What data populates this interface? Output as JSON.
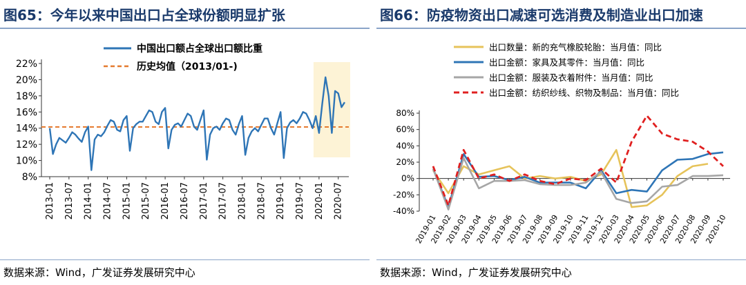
{
  "left": {
    "title": "图65：今年以来中国出口占全球份额明显扩张",
    "source": "数据来源：Wind，广发证券发展研究中心"
  },
  "right": {
    "title": "图66：防疫物资出口减速可选消费及制造业出口加速",
    "source": "数据来源：Wind，广发证券发展研究中心"
  },
  "chart_data": [
    {
      "type": "line",
      "title": "",
      "xlabel": "",
      "ylabel": "",
      "ylim": [
        0.08,
        0.22
      ],
      "yticks": [
        "8%",
        "10%",
        "12%",
        "14%",
        "16%",
        "18%",
        "20%",
        "22%"
      ],
      "xticks": [
        "2013-01",
        "2013-07",
        "2014-01",
        "2014-07",
        "2015-01",
        "2015-07",
        "2016-01",
        "2016-07",
        "2017-01",
        "2017-07",
        "2018-01",
        "2018-07",
        "2019-01",
        "2019-07",
        "2020-01",
        "2020-07"
      ],
      "legend": [
        "中国出口额占全球出口额比重",
        "历史均值（2013/01-)"
      ],
      "legend_position": "top",
      "colors": {
        "series": "#2e75b6",
        "mean": "#e57a2e",
        "highlight": "#fdf3d6"
      },
      "highlight_range": [
        "2020-01",
        "2020-09"
      ],
      "series": [
        {
          "name": "中国出口额占全球出口额比重",
          "values": [
            0.14,
            0.108,
            0.12,
            0.128,
            0.125,
            0.122,
            0.128,
            0.135,
            0.132,
            0.127,
            0.123,
            0.135,
            0.142,
            0.088,
            0.126,
            0.132,
            0.13,
            0.135,
            0.143,
            0.15,
            0.148,
            0.138,
            0.136,
            0.15,
            0.155,
            0.112,
            0.14,
            0.145,
            0.148,
            0.148,
            0.155,
            0.162,
            0.16,
            0.148,
            0.145,
            0.16,
            0.165,
            0.115,
            0.138,
            0.144,
            0.146,
            0.142,
            0.15,
            0.158,
            0.155,
            0.142,
            0.138,
            0.15,
            0.162,
            0.101,
            0.132,
            0.14,
            0.142,
            0.138,
            0.146,
            0.152,
            0.15,
            0.138,
            0.132,
            0.145,
            0.155,
            0.107,
            0.128,
            0.136,
            0.14,
            0.136,
            0.144,
            0.152,
            0.152,
            0.14,
            0.132,
            0.146,
            0.16,
            0.103,
            0.14,
            0.147,
            0.15,
            0.146,
            0.152,
            0.16,
            0.158,
            0.15,
            0.14,
            0.155,
            0.134,
            0.17,
            0.203,
            0.18,
            0.134,
            0.186,
            0.183,
            0.166,
            0.172
          ]
        },
        {
          "name": "历史均值（2013/01-)",
          "values": [
            0.1415
          ]
        }
      ]
    },
    {
      "type": "line",
      "title": "",
      "xlabel": "",
      "ylabel": "",
      "ylim": [
        -0.4,
        0.8
      ],
      "yticks": [
        "-40%",
        "-20%",
        "0%",
        "20%",
        "40%",
        "60%",
        "80%"
      ],
      "categories": [
        "2019-01",
        "2019-02",
        "2019-03",
        "2019-04",
        "2019-05",
        "2019-06",
        "2019-07",
        "2019-08",
        "2019-09",
        "2019-10",
        "2019-11",
        "2019-12",
        "2020-03",
        "2020-04",
        "2020-05",
        "2020-06",
        "2020-07",
        "2020-08",
        "2020-09",
        "2020-10"
      ],
      "legend_position": "top-left",
      "series": [
        {
          "name": "出口数量：新的充气橡胶轮胎：当月值：同比",
          "color": "#e6c35a",
          "dash": false,
          "values": [
            0.1,
            -0.18,
            0.15,
            0.05,
            0.1,
            0.15,
            0.0,
            0.03,
            0.0,
            0.02,
            -0.03,
            0.05,
            0.35,
            -0.35,
            -0.33,
            -0.2,
            0.03,
            0.15,
            0.18,
            null
          ]
        },
        {
          "name": "出口金额：家具及其零件：当月值：同比",
          "color": "#2e75b6",
          "dash": false,
          "values": [
            0.12,
            -0.35,
            0.3,
            0.02,
            0.03,
            -0.02,
            0.02,
            -0.05,
            -0.05,
            -0.05,
            -0.12,
            0.1,
            -0.18,
            -0.14,
            -0.16,
            0.1,
            0.23,
            0.24,
            0.3,
            0.32
          ]
        },
        {
          "name": "出口金额：服装及衣着附件：当月值：同比",
          "color": "#a6a6a6",
          "dash": false,
          "values": [
            0.12,
            -0.38,
            0.25,
            -0.12,
            -0.03,
            -0.03,
            -0.02,
            -0.07,
            -0.08,
            -0.08,
            -0.05,
            0.08,
            -0.25,
            -0.3,
            -0.28,
            -0.1,
            -0.08,
            0.03,
            0.03,
            0.04
          ]
        },
        {
          "name": "出口金额：纺织纱线、织物及制品：当月值：同比",
          "color": "#e02020",
          "dash": true,
          "values": [
            0.15,
            -0.33,
            0.35,
            0.0,
            0.05,
            -0.03,
            0.05,
            -0.03,
            -0.07,
            0.0,
            -0.02,
            0.12,
            -0.05,
            0.45,
            0.77,
            0.55,
            0.48,
            0.45,
            0.33,
            0.15
          ]
        }
      ]
    }
  ]
}
